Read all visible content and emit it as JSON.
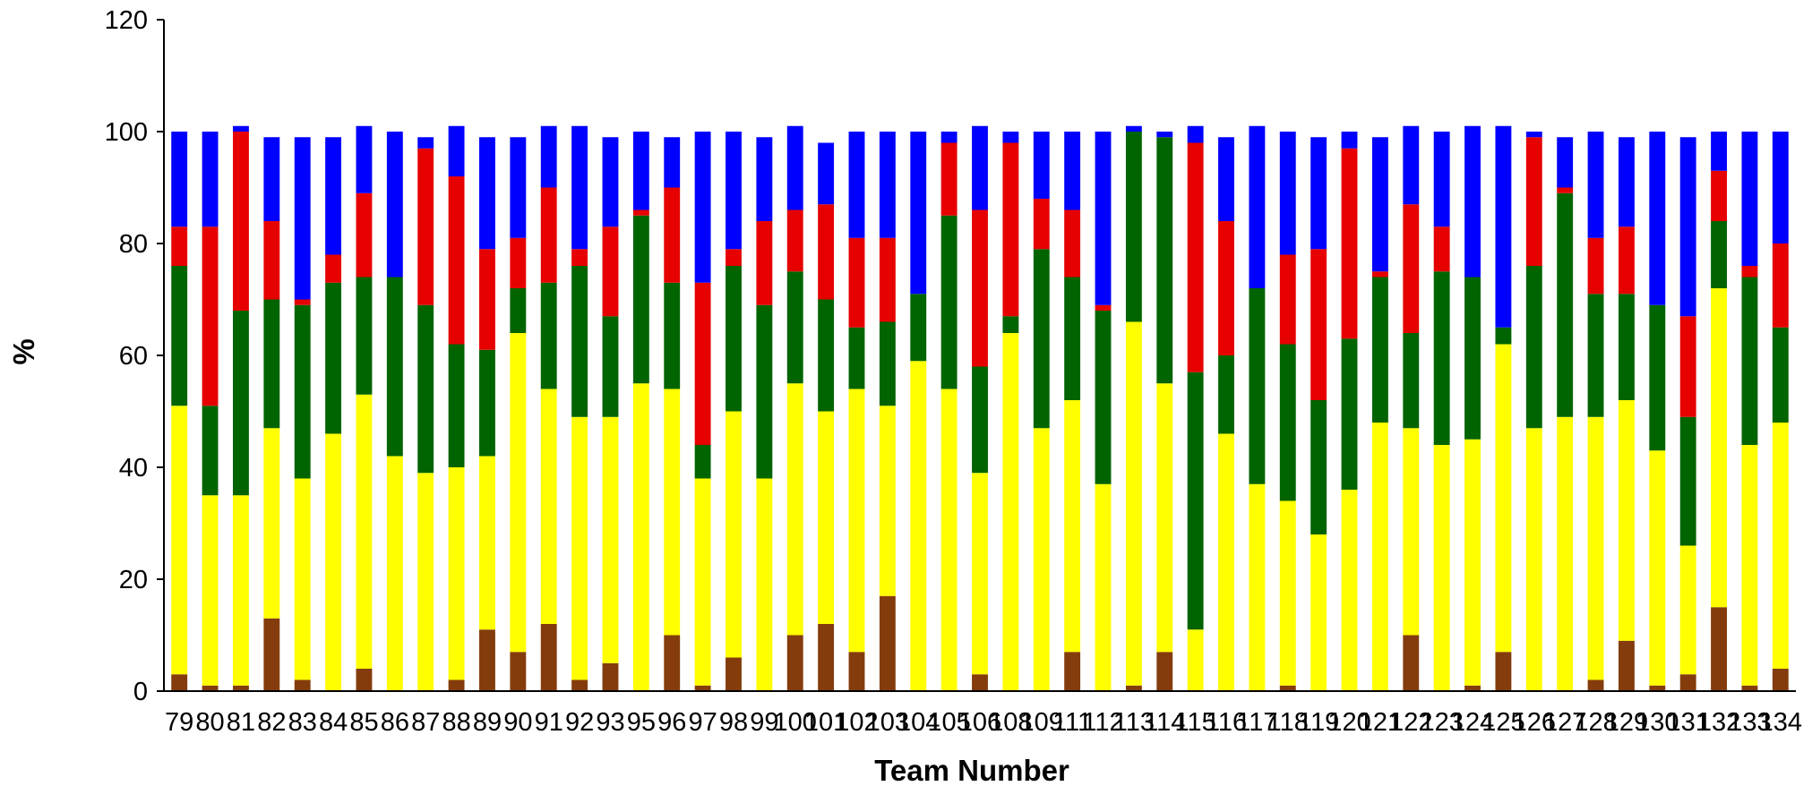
{
  "chart_data": {
    "type": "bar",
    "stacked": true,
    "title": "",
    "xlabel": "Team Number",
    "ylabel": "%",
    "ylim": [
      0,
      120
    ],
    "yticks": [
      0,
      20,
      40,
      60,
      80,
      100,
      120
    ],
    "grid": false,
    "legend": "none",
    "categories": [
      "79",
      "80",
      "81",
      "82",
      "83",
      "84",
      "85",
      "86",
      "87",
      "88",
      "89",
      "90",
      "91",
      "92",
      "93",
      "95",
      "96",
      "97",
      "98",
      "99",
      "100",
      "101",
      "102",
      "103",
      "104",
      "105",
      "106",
      "108",
      "109",
      "111",
      "112",
      "113",
      "114",
      "115",
      "116",
      "117",
      "118",
      "119",
      "120",
      "121",
      "122",
      "123",
      "124",
      "125",
      "126",
      "127",
      "128",
      "129",
      "130",
      "131",
      "132",
      "133",
      "134"
    ],
    "series": [
      {
        "color": "#843c0c",
        "values": [
          3,
          1,
          1,
          13,
          2,
          0,
          4,
          0,
          0,
          2,
          11,
          7,
          12,
          2,
          5,
          0,
          10,
          1,
          6,
          0,
          10,
          12,
          7,
          17,
          0,
          0,
          3,
          0,
          0,
          7,
          0,
          1,
          7,
          0,
          0,
          0,
          1,
          0,
          0,
          0,
          10,
          0,
          1,
          7,
          0,
          0,
          2,
          9,
          1,
          3,
          15,
          1,
          4
        ]
      },
      {
        "color": "#ffff00",
        "values": [
          48,
          34,
          34,
          34,
          36,
          46,
          49,
          42,
          39,
          38,
          31,
          57,
          42,
          47,
          44,
          55,
          44,
          37,
          44,
          38,
          45,
          38,
          47,
          34,
          59,
          54,
          36,
          64,
          47,
          45,
          37,
          65,
          48,
          11,
          46,
          37,
          33,
          28,
          36,
          48,
          37,
          44,
          44,
          55,
          47,
          49,
          47,
          43,
          42,
          23,
          57,
          43,
          44
        ]
      },
      {
        "color": "#006400",
        "values": [
          25,
          16,
          33,
          23,
          31,
          27,
          21,
          32,
          30,
          22,
          19,
          8,
          19,
          27,
          18,
          30,
          19,
          6,
          26,
          31,
          20,
          20,
          11,
          15,
          12,
          31,
          19,
          3,
          32,
          22,
          31,
          34,
          44,
          46,
          14,
          35,
          28,
          24,
          27,
          26,
          17,
          31,
          29,
          3,
          29,
          40,
          22,
          19,
          26,
          23,
          12,
          30,
          17
        ]
      },
      {
        "color": "#e60000",
        "values": [
          7,
          32,
          32,
          14,
          1,
          5,
          15,
          0,
          28,
          30,
          18,
          9,
          17,
          3,
          16,
          1,
          17,
          29,
          3,
          15,
          11,
          17,
          16,
          15,
          0,
          13,
          28,
          31,
          9,
          12,
          1,
          0,
          0,
          41,
          24,
          0,
          16,
          27,
          34,
          1,
          23,
          8,
          0,
          0,
          23,
          1,
          10,
          12,
          0,
          18,
          9,
          2,
          15
        ]
      },
      {
        "color": "#0000ff",
        "values": [
          17,
          17,
          1,
          15,
          29,
          21,
          12,
          26,
          2,
          9,
          20,
          18,
          11,
          22,
          16,
          14,
          9,
          27,
          21,
          15,
          15,
          11,
          19,
          19,
          29,
          2,
          15,
          2,
          12,
          14,
          31,
          1,
          1,
          3,
          15,
          29,
          22,
          20,
          3,
          24,
          14,
          17,
          27,
          36,
          1,
          9,
          19,
          16,
          31,
          32,
          7,
          24,
          20
        ]
      }
    ]
  }
}
